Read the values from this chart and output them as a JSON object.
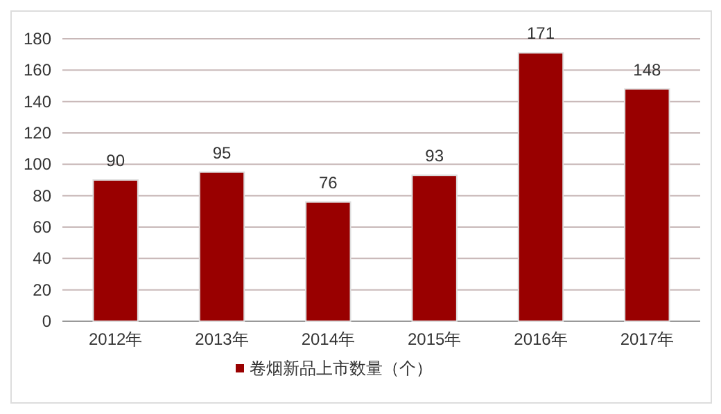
{
  "chart_data": {
    "type": "bar",
    "categories": [
      "2012年",
      "2013年",
      "2014年",
      "2015年",
      "2016年",
      "2017年"
    ],
    "series": [
      {
        "name": "卷烟新品上市数量（个）",
        "color": "#990000",
        "values": [
          90,
          95,
          76,
          93,
          171,
          148
        ]
      }
    ],
    "ylim": [
      0,
      180
    ],
    "yticks": [
      0,
      20,
      40,
      60,
      80,
      100,
      120,
      140,
      160,
      180
    ],
    "grid": "y",
    "data_labels": true,
    "legend": "bottom"
  }
}
